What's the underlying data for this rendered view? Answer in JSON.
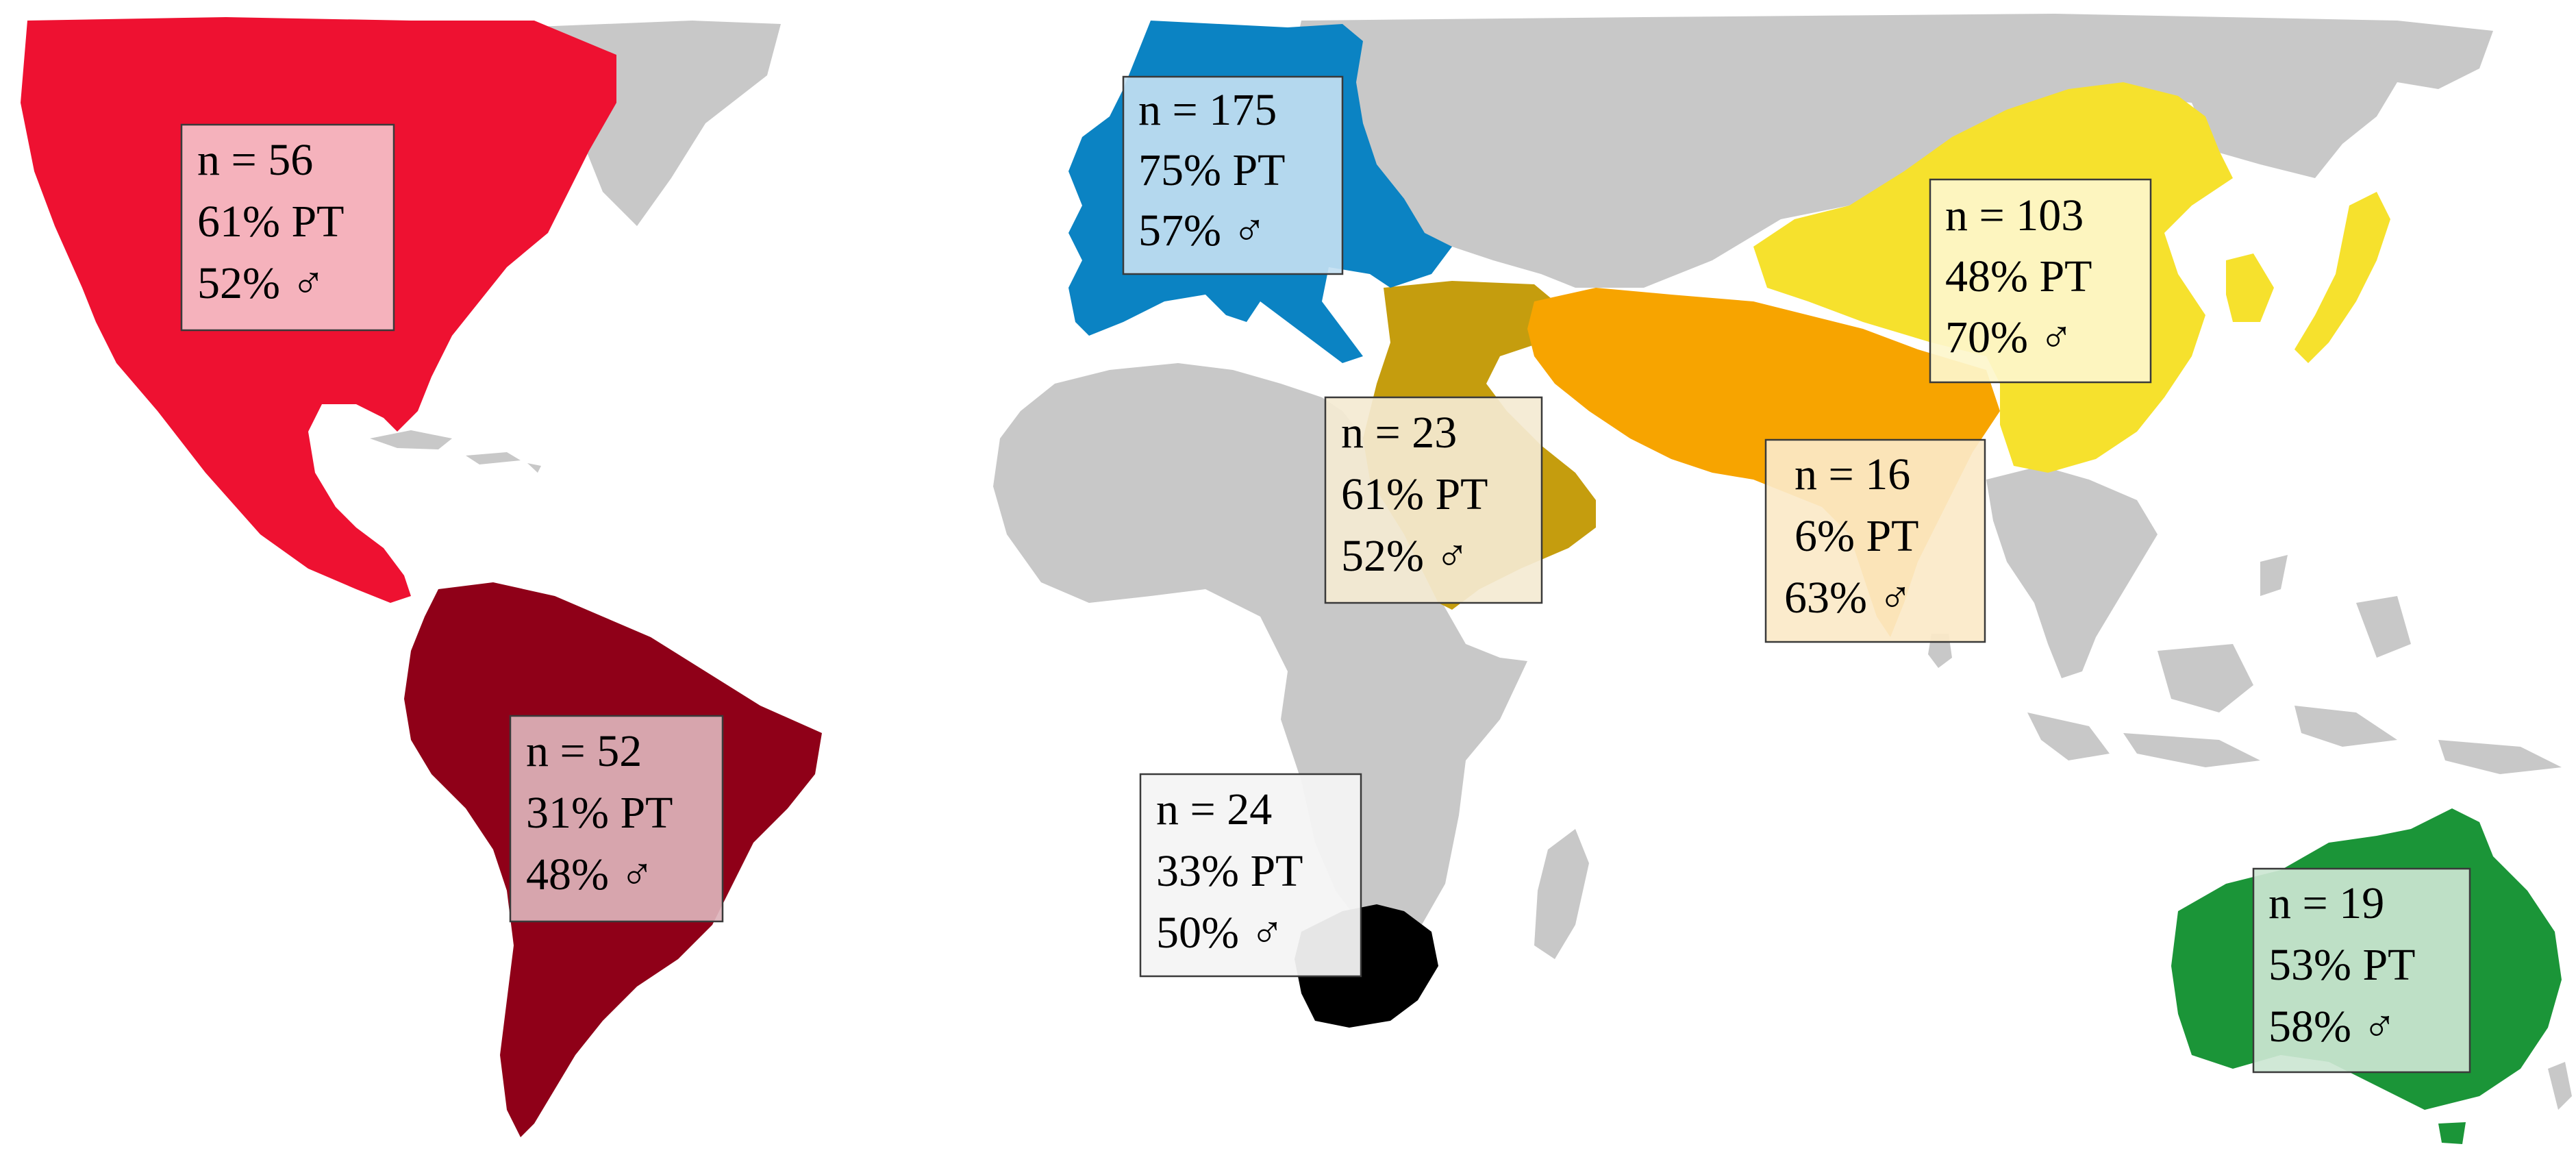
{
  "colors": {
    "background": "#ffffff",
    "land_default": "#c8c8c8",
    "north_america": "#ee1131",
    "south_america": "#8f0018",
    "europe": "#0b83c3",
    "middle_east": "#c59d0e",
    "central_asia": "#f7a400",
    "east_asia": "#f6e12d",
    "south_africa": "#000000",
    "australia": "#1b9538"
  },
  "regions": {
    "north_america": {
      "n": "n = 56",
      "pt": "61% PT",
      "male": "52% ♂"
    },
    "south_america": {
      "n": "n = 52",
      "pt": "31% PT",
      "male": "48% ♂"
    },
    "europe": {
      "n": "n = 175",
      "pt": "75% PT",
      "male": "57% ♂"
    },
    "middle_east": {
      "n": "n = 23",
      "pt": "61% PT",
      "male": "52% ♂"
    },
    "south_asia": {
      "n": "n = 16",
      "pt": "6% PT",
      "male": "63% ♂"
    },
    "east_asia": {
      "n": "n = 103",
      "pt": "48% PT",
      "male": "70% ♂"
    },
    "south_africa": {
      "n": "n = 24",
      "pt": "33% PT",
      "male": "50% ♂"
    },
    "australia": {
      "n": "n = 19",
      "pt": "53% PT",
      "male": "58% ♂"
    }
  }
}
